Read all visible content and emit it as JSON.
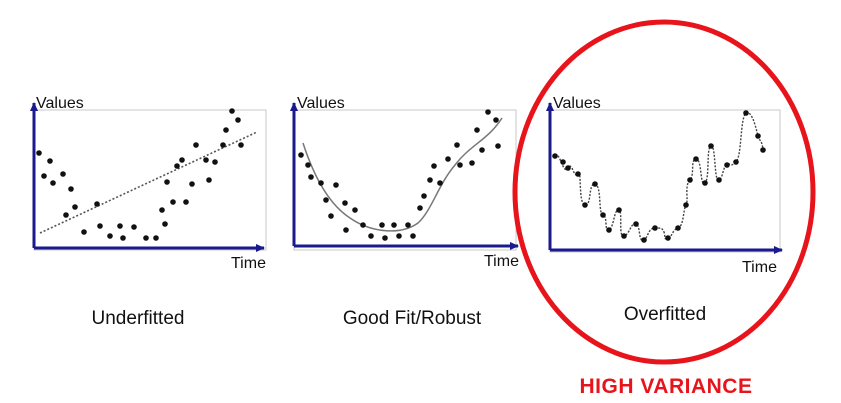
{
  "colors": {
    "axis": "#1a1a8c",
    "frame": "#c8c8c8",
    "point": "#111111",
    "curve": "#777777",
    "highlight": "#e8141b"
  },
  "panels": [
    {
      "id": "underfitted",
      "y_axis_label": "Values",
      "x_axis_label": "Time",
      "caption": "Underfitted",
      "fit": "linear"
    },
    {
      "id": "good-fit",
      "y_axis_label": "Values",
      "x_axis_label": "Time",
      "caption": "Good Fit/Robust",
      "fit": "smooth"
    },
    {
      "id": "overfitted",
      "y_axis_label": "Values",
      "x_axis_label": "Time",
      "caption": "Overfitted",
      "fit": "interpolating"
    }
  ],
  "highlight": {
    "target_panel": "overfitted",
    "label": "HIGH VARIANCE"
  }
}
